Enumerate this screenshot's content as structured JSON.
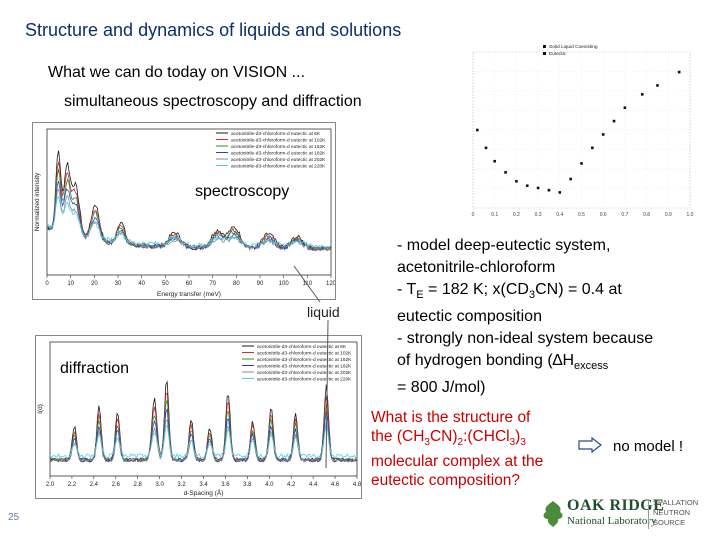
{
  "slide": {
    "title": "Structure and dynamics of liquids and solutions",
    "subtitle1": "What we can do today on VISION ...",
    "subtitle2": "simultaneous spectroscopy and diffraction",
    "label_spectroscopy": "spectroscopy",
    "label_diffraction": "diffraction",
    "label_liquid": "liquid",
    "page_number": "25"
  },
  "description": {
    "line1": "- model deep-eutectic system,",
    "line2": "acetonitrile-chloroform",
    "line3_prefix": "- T",
    "line3_sub": "E",
    "line3_suffix": " = 182 K; x(CD",
    "line3_sub2": "3",
    "line3_end": "CN) = 0.4 at",
    "line4": "eutectic composition",
    "line5": "- strongly non-ideal system because",
    "line6_prefix": "of hydrogen bonding (",
    "line6_delta": "∆H",
    "line6_sub": "excess",
    "line7": "= 800 J/mol)"
  },
  "question": {
    "p1": "What is the structure of",
    "p2a": "the (CH",
    "p2s1": "3",
    "p2b": "CN)",
    "p2s2": "2",
    "p2c": ":(CHCl",
    "p2s3": "3",
    "p2d": ")",
    "p2s4": "3",
    "p3": "molecular complex at the",
    "p4": "eutectic composition?"
  },
  "conclusion": {
    "text": "no model !"
  },
  "logo": {
    "name_line1": "OAK RIDGE",
    "name_line2": "National Laboratory",
    "side_line1": "SPALLATION",
    "side_line2": "NEUTRON",
    "side_line3": "SOURCE"
  },
  "chart_data": [
    {
      "type": "line",
      "name": "spectroscopy",
      "xlabel": "Energy transfer (meV)",
      "ylabel": "Normalized intensity",
      "x_ticks": [
        "0",
        "10",
        "20",
        "30",
        "40",
        "50",
        "60",
        "70",
        "80",
        "90",
        "100",
        "110",
        "120"
      ],
      "series": [
        {
          "name": "acetonitrile-d3-chloroform-d eutectic at 6K",
          "color": "#1a1a1a"
        },
        {
          "name": "acetonitrile-d3-chloroform-d eutectic at 102K",
          "color": "#cc2b2b"
        },
        {
          "name": "acetonitrile-d3-chloroform-d eutectic at 162K",
          "color": "#2b8a2b"
        },
        {
          "name": "acetonitrile-d3-chloroform-d eutectic at 182K",
          "color": "#2b3fcc"
        },
        {
          "name": "acetonitrile-d3-chloroform-d eutectic at 202K",
          "color": "#8a8a8a"
        },
        {
          "name": "acetonitrile-d3-chloroform-d eutectic at 220K",
          "color": "#4fd0e0"
        }
      ]
    },
    {
      "type": "line",
      "name": "diffraction",
      "xlabel": "d-Spacing (Å)",
      "ylabel": "I(d)",
      "x_ticks": [
        "2.0",
        "2.2",
        "2.4",
        "2.6",
        "2.8",
        "3.0",
        "3.2",
        "3.4",
        "3.6",
        "3.8",
        "4.0",
        "4.2",
        "4.4",
        "4.6",
        "4.8"
      ],
      "series": [
        {
          "name": "acetonitrile-d3-chloroform-d eutectic at 6K",
          "color": "#1a1a1a"
        },
        {
          "name": "acetonitrile-d3-chloroform-d eutectic at 102K",
          "color": "#cc2b2b"
        },
        {
          "name": "acetonitrile-d3-chloroform-d eutectic at 162K",
          "color": "#2b8a2b"
        },
        {
          "name": "acetonitrile-d3-chloroform-d eutectic at 182K",
          "color": "#2b3fcc"
        },
        {
          "name": "acetonitrile-d3-chloroform-d eutectic at 202K",
          "color": "#8a8a8a"
        },
        {
          "name": "acetonitrile-d3-chloroform-d eutectic at 220K",
          "color": "#4fd0e0"
        }
      ]
    },
    {
      "type": "scatter",
      "name": "phase-diagram",
      "legend": [
        "Solid Liquid Coexisting",
        "Eutectic"
      ],
      "x_ticks": [
        "0",
        "0.1",
        "0.2",
        "0.3",
        "0.4",
        "0.5",
        "0.6",
        "0.7",
        "0.8",
        "0.9",
        "1.0"
      ],
      "points": [
        {
          "x": 0.02,
          "y": 210
        },
        {
          "x": 0.06,
          "y": 202
        },
        {
          "x": 0.1,
          "y": 196
        },
        {
          "x": 0.15,
          "y": 191
        },
        {
          "x": 0.2,
          "y": 187
        },
        {
          "x": 0.25,
          "y": 185
        },
        {
          "x": 0.3,
          "y": 184
        },
        {
          "x": 0.35,
          "y": 183
        },
        {
          "x": 0.4,
          "y": 182
        },
        {
          "x": 0.45,
          "y": 188
        },
        {
          "x": 0.5,
          "y": 195
        },
        {
          "x": 0.55,
          "y": 202
        },
        {
          "x": 0.6,
          "y": 208
        },
        {
          "x": 0.65,
          "y": 214
        },
        {
          "x": 0.7,
          "y": 220
        },
        {
          "x": 0.78,
          "y": 226
        },
        {
          "x": 0.85,
          "y": 230
        },
        {
          "x": 0.95,
          "y": 236
        }
      ]
    }
  ]
}
